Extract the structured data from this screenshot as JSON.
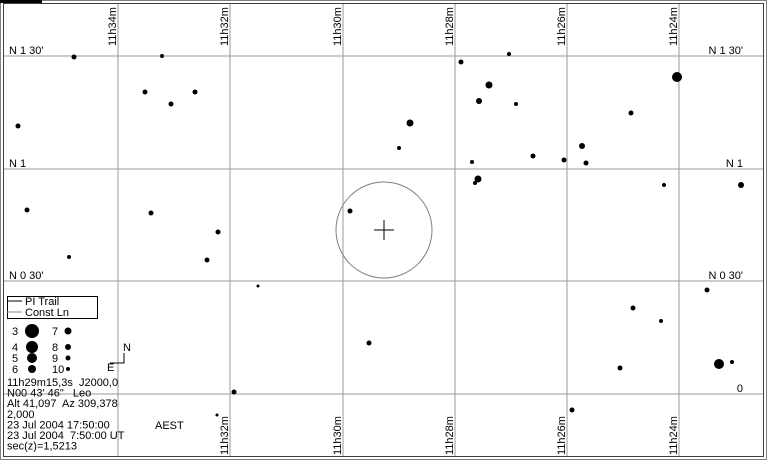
{
  "ra_labels_top": [
    "11h34m",
    "11h32m",
    "11h30m",
    "11h28m",
    "11h26m",
    "11h24m"
  ],
  "ra_labels_bottom": [
    "11h32m",
    "11h30m",
    "11h28m",
    "11h26m",
    "11h24m"
  ],
  "dec_labels_left": [
    "N 1 30'",
    "N 1",
    "N 0 30'"
  ],
  "dec_labels_right": [
    "N 1 30'",
    "N 1",
    "N 0 30'",
    "0"
  ],
  "legend": [
    "PI Trail",
    "Const Ln"
  ],
  "magnitudes": [
    3,
    4,
    5,
    6,
    7,
    8,
    9,
    10
  ],
  "compass": {
    "north": "N",
    "east": "E"
  },
  "info": [
    "11h29m15,3s  J2000,0",
    "N00 43' 46\"   Leo",
    "Alt 41,097  Az 309,378",
    "2,000",
    "23 Jul 2004 17:50:00",
    "23 Jul 2004  7:50:00 UT",
    "sec(z)=1,5213"
  ],
  "timezone": "AEST"
}
